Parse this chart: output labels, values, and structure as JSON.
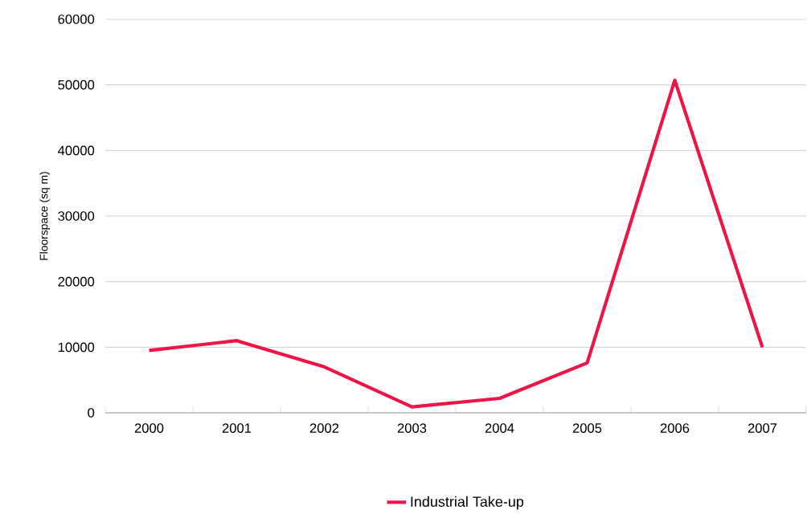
{
  "chart_data": {
    "type": "line",
    "ylabel": "Floorspace (sq m)",
    "categories": [
      "2000",
      "2001",
      "2002",
      "2003",
      "2004",
      "2005",
      "2006",
      "2007"
    ],
    "series": [
      {
        "name": "Industrial Take-up",
        "color": "#ee1445",
        "values": [
          9500,
          11000,
          7000,
          900,
          2200,
          7600,
          50700,
          10000
        ]
      }
    ],
    "ylim": [
      0,
      60000
    ],
    "yticks": [
      0,
      10000,
      20000,
      30000,
      40000,
      50000,
      60000
    ],
    "grid": "y",
    "legend": "bottom",
    "marker": "none",
    "line_style": "solid"
  }
}
